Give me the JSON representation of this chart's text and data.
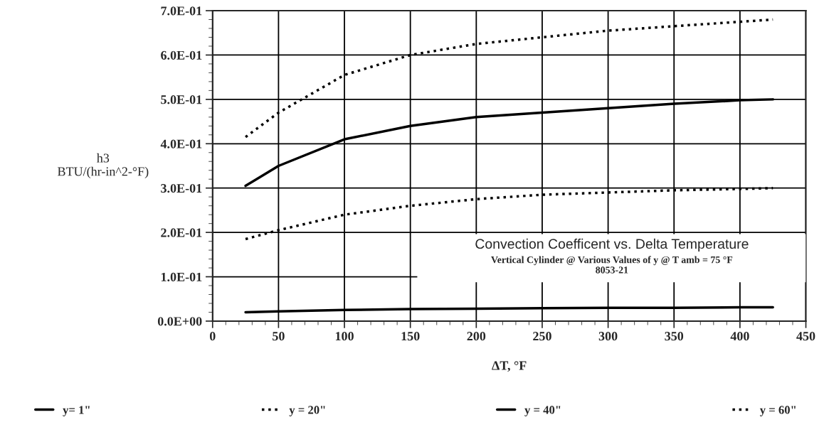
{
  "chart_data": {
    "type": "line",
    "title": "Convection Coefficent vs. Delta Temperature",
    "subtitle": "Vertical Cylinder @ Various Values of y @ T amb = 75 °F",
    "annotations": [
      "8053-21"
    ],
    "xlabel": "ΔT, °F",
    "ylabel": "h3\nBTU/(hr-in^2-°F)",
    "x": [
      25,
      50,
      100,
      150,
      200,
      250,
      300,
      350,
      400,
      425
    ],
    "series": [
      {
        "name": "y= 1\"",
        "color": "#000000",
        "line_style": "solid",
        "values": [
          0.02,
          0.022,
          0.025,
          0.027,
          0.028,
          0.029,
          0.03,
          0.03,
          0.031,
          0.031
        ]
      },
      {
        "name": "y = 20\"",
        "color": "#000000",
        "line_style": "dotted",
        "values": [
          0.185,
          0.205,
          0.24,
          0.26,
          0.275,
          0.285,
          0.29,
          0.295,
          0.298,
          0.3
        ]
      },
      {
        "name": "y = 40\"",
        "color": "#000000",
        "line_style": "solid",
        "values": [
          0.305,
          0.35,
          0.41,
          0.44,
          0.46,
          0.47,
          0.48,
          0.49,
          0.498,
          0.5
        ]
      },
      {
        "name": "y = 60\"",
        "color": "#000000",
        "line_style": "dotted",
        "values": [
          0.415,
          0.47,
          0.555,
          0.6,
          0.625,
          0.64,
          0.655,
          0.665,
          0.675,
          0.68
        ]
      }
    ],
    "xlim": [
      0,
      450
    ],
    "xticks": [
      0,
      50,
      100,
      150,
      200,
      250,
      300,
      350,
      400,
      450
    ],
    "ylim": [
      0,
      0.7
    ],
    "yticks": [
      {
        "value": 0,
        "label": "0.0E+00"
      },
      {
        "value": 0.1,
        "label": "1.0E-01"
      },
      {
        "value": 0.2,
        "label": "2.0E-01"
      },
      {
        "value": 0.3,
        "label": "3.0E-01"
      },
      {
        "value": 0.4,
        "label": "4.0E-01"
      },
      {
        "value": 0.5,
        "label": "5.0E-01"
      },
      {
        "value": 0.6,
        "label": "6.0E-01"
      },
      {
        "value": 0.7,
        "label": "7.0E-01"
      }
    ],
    "grid": true,
    "legend": "bottom",
    "marker": "none"
  }
}
